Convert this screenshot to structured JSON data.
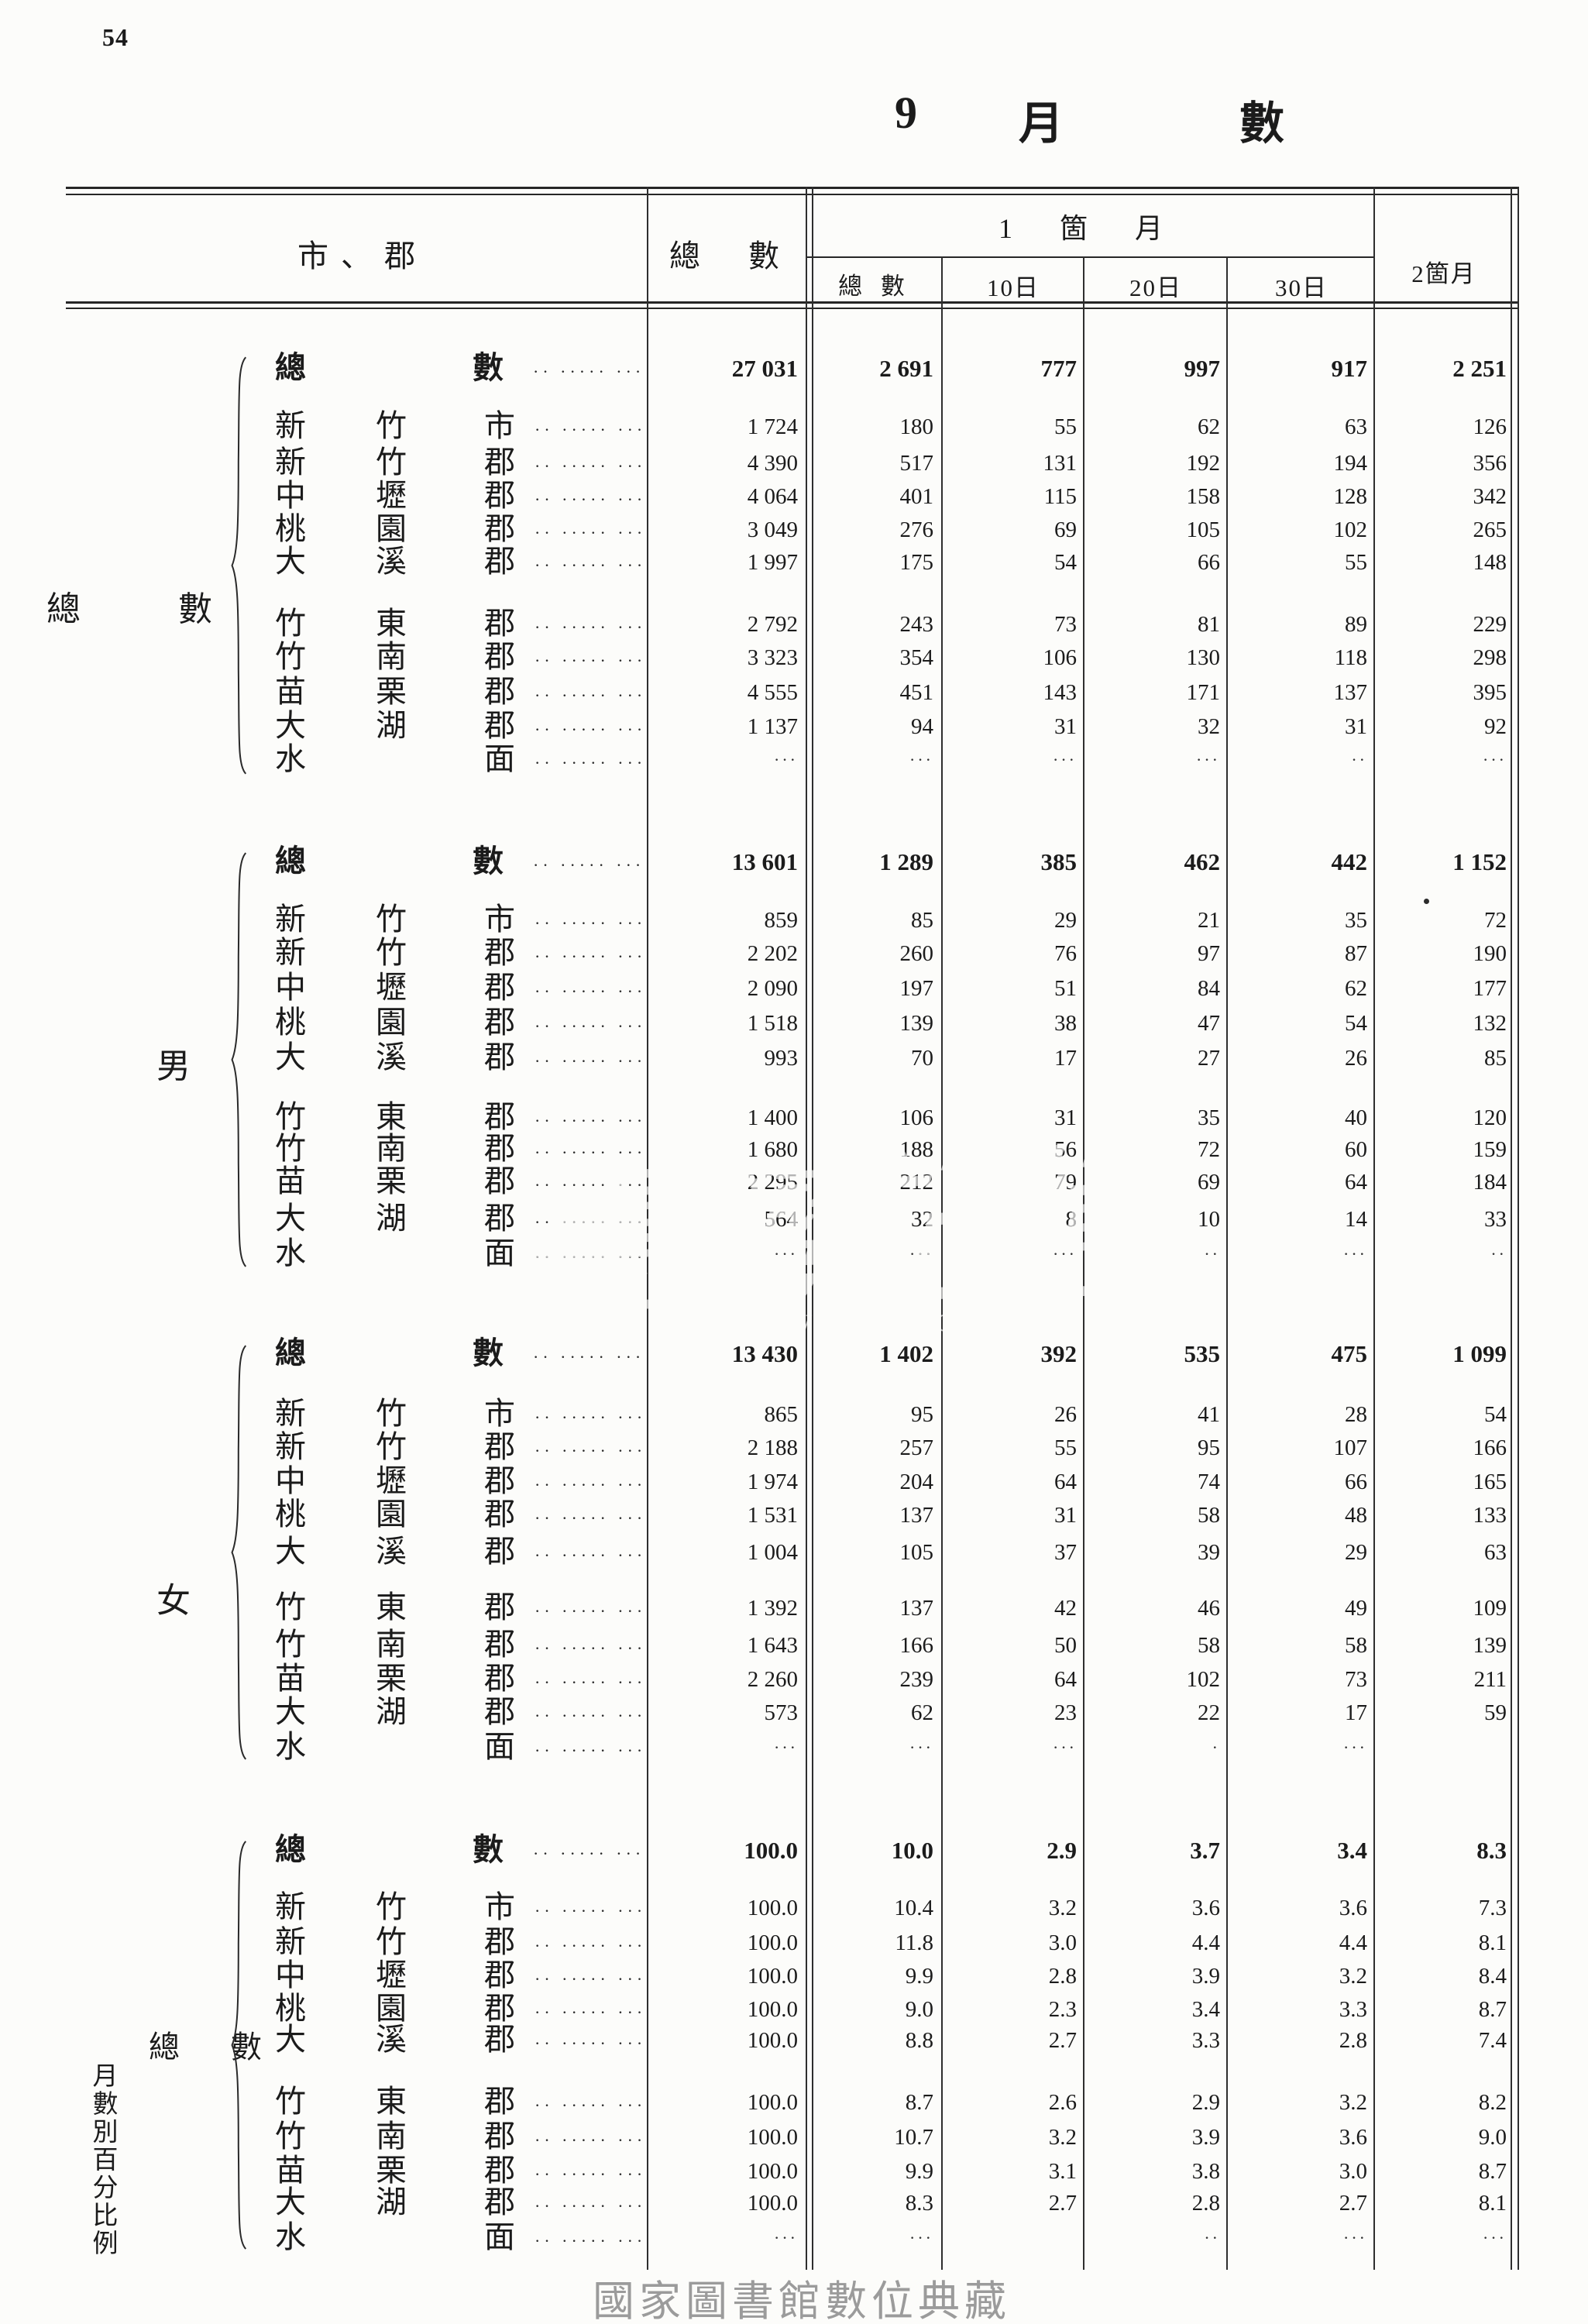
{
  "page": {
    "number": "54"
  },
  "title": {
    "parts": [
      "9",
      "月",
      "數"
    ]
  },
  "watermark": {
    "script": "臺灣記憶",
    "latin": "Taiwan Memory"
  },
  "footer": {
    "caption": "國家圖書館數位典藏"
  },
  "table": {
    "leader": "·· ····· ·····",
    "header": {
      "col_region": "市、郡",
      "col_total": "總 數",
      "col_month1": "1 箇 月",
      "sub_total": "總 數",
      "sub_d10": "10日",
      "sub_d20": "20日",
      "sub_d30": "30日",
      "col_month2": "2箇月"
    },
    "sections": [
      {
        "id": "total",
        "side": {
          "chars": [
            "總",
            "數"
          ]
        },
        "total": {
          "labels": [
            "總",
            "數"
          ],
          "values": [
            "27 031",
            "2 691",
            "777",
            "997",
            "917",
            "2 251"
          ]
        },
        "rows": [
          {
            "name": [
              "新",
              "竹",
              "市"
            ],
            "values": [
              "1 724",
              "180",
              "55",
              "62",
              "63",
              "126"
            ]
          },
          {
            "name": [
              "新",
              "竹",
              "郡"
            ],
            "values": [
              "4 390",
              "517",
              "131",
              "192",
              "194",
              "356"
            ]
          },
          {
            "name": [
              "中",
              "壢",
              "郡"
            ],
            "values": [
              "4 064",
              "401",
              "115",
              "158",
              "128",
              "342"
            ]
          },
          {
            "name": [
              "桃",
              "園",
              "郡"
            ],
            "values": [
              "3 049",
              "276",
              "69",
              "105",
              "102",
              "265"
            ]
          },
          {
            "name": [
              "大",
              "溪",
              "郡"
            ],
            "values": [
              "1 997",
              "175",
              "54",
              "66",
              "55",
              "148"
            ]
          },
          {
            "name": [
              "竹",
              "東",
              "郡"
            ],
            "values": [
              "2 792",
              "243",
              "73",
              "81",
              "89",
              "229"
            ]
          },
          {
            "name": [
              "竹",
              "南",
              "郡"
            ],
            "values": [
              "3 323",
              "354",
              "106",
              "130",
              "118",
              "298"
            ]
          },
          {
            "name": [
              "苗",
              "栗",
              "郡"
            ],
            "values": [
              "4 555",
              "451",
              "143",
              "171",
              "137",
              "395"
            ]
          },
          {
            "name": [
              "大",
              "湖",
              "郡"
            ],
            "values": [
              "1 137",
              "94",
              "31",
              "32",
              "31",
              "92"
            ]
          },
          {
            "name": [
              "水",
              "",
              "面"
            ],
            "values": [
              "···",
              "···",
              "···",
              "···",
              "··",
              "···"
            ]
          }
        ]
      },
      {
        "id": "male",
        "side": {
          "chars": [
            "男"
          ]
        },
        "total": {
          "labels": [
            "總",
            "數"
          ],
          "values": [
            "13 601",
            "1 289",
            "385",
            "462",
            "442",
            "1 152"
          ]
        },
        "rows": [
          {
            "name": [
              "新",
              "竹",
              "市"
            ],
            "values": [
              "859",
              "85",
              "29",
              "21",
              "35",
              "72"
            ]
          },
          {
            "name": [
              "新",
              "竹",
              "郡"
            ],
            "values": [
              "2 202",
              "260",
              "76",
              "97",
              "87",
              "190"
            ]
          },
          {
            "name": [
              "中",
              "壢",
              "郡"
            ],
            "values": [
              "2 090",
              "197",
              "51",
              "84",
              "62",
              "177"
            ]
          },
          {
            "name": [
              "桃",
              "園",
              "郡"
            ],
            "values": [
              "1 518",
              "139",
              "38",
              "47",
              "54",
              "132"
            ]
          },
          {
            "name": [
              "大",
              "溪",
              "郡"
            ],
            "values": [
              "993",
              "70",
              "17",
              "27",
              "26",
              "85"
            ]
          },
          {
            "name": [
              "竹",
              "東",
              "郡"
            ],
            "values": [
              "1 400",
              "106",
              "31",
              "35",
              "40",
              "120"
            ]
          },
          {
            "name": [
              "竹",
              "南",
              "郡"
            ],
            "values": [
              "1 680",
              "188",
              "56",
              "72",
              "60",
              "159"
            ]
          },
          {
            "name": [
              "苗",
              "栗",
              "郡"
            ],
            "values": [
              "2 295",
              "212",
              "79",
              "69",
              "64",
              "184"
            ]
          },
          {
            "name": [
              "大",
              "湖",
              "郡"
            ],
            "values": [
              "564",
              "32",
              "8",
              "10",
              "14",
              "33"
            ]
          },
          {
            "name": [
              "水",
              "",
              "面"
            ],
            "values": [
              "···",
              "···",
              "···",
              "··",
              "···",
              "··"
            ]
          }
        ]
      },
      {
        "id": "female",
        "side": {
          "chars": [
            "女"
          ]
        },
        "total": {
          "labels": [
            "總",
            "數"
          ],
          "values": [
            "13 430",
            "1 402",
            "392",
            "535",
            "475",
            "1 099"
          ]
        },
        "rows": [
          {
            "name": [
              "新",
              "竹",
              "市"
            ],
            "values": [
              "865",
              "95",
              "26",
              "41",
              "28",
              "54"
            ]
          },
          {
            "name": [
              "新",
              "竹",
              "郡"
            ],
            "values": [
              "2 188",
              "257",
              "55",
              "95",
              "107",
              "166"
            ]
          },
          {
            "name": [
              "中",
              "壢",
              "郡"
            ],
            "values": [
              "1 974",
              "204",
              "64",
              "74",
              "66",
              "165"
            ]
          },
          {
            "name": [
              "桃",
              "園",
              "郡"
            ],
            "values": [
              "1 531",
              "137",
              "31",
              "58",
              "48",
              "133"
            ]
          },
          {
            "name": [
              "大",
              "溪",
              "郡"
            ],
            "values": [
              "1 004",
              "105",
              "37",
              "39",
              "29",
              "63"
            ]
          },
          {
            "name": [
              "竹",
              "東",
              "郡"
            ],
            "values": [
              "1 392",
              "137",
              "42",
              "46",
              "49",
              "109"
            ]
          },
          {
            "name": [
              "竹",
              "南",
              "郡"
            ],
            "values": [
              "1 643",
              "166",
              "50",
              "58",
              "58",
              "139"
            ]
          },
          {
            "name": [
              "苗",
              "栗",
              "郡"
            ],
            "values": [
              "2 260",
              "239",
              "64",
              "102",
              "73",
              "211"
            ]
          },
          {
            "name": [
              "大",
              "湖",
              "郡"
            ],
            "values": [
              "573",
              "62",
              "23",
              "22",
              "17",
              "59"
            ]
          },
          {
            "name": [
              "水",
              "",
              "面"
            ],
            "values": [
              "···",
              "···",
              "···",
              "·",
              "···",
              ""
            ]
          }
        ]
      },
      {
        "id": "percent",
        "side": {
          "chars": [
            "總",
            "數"
          ],
          "vertical": "月數別百分比例"
        },
        "total": {
          "labels": [
            "總",
            "數"
          ],
          "values": [
            "100.0",
            "10.0",
            "2.9",
            "3.7",
            "3.4",
            "8.3"
          ]
        },
        "rows": [
          {
            "name": [
              "新",
              "竹",
              "市"
            ],
            "values": [
              "100.0",
              "10.4",
              "3.2",
              "3.6",
              "3.6",
              "7.3"
            ]
          },
          {
            "name": [
              "新",
              "竹",
              "郡"
            ],
            "values": [
              "100.0",
              "11.8",
              "3.0",
              "4.4",
              "4.4",
              "8.1"
            ]
          },
          {
            "name": [
              "中",
              "壢",
              "郡"
            ],
            "values": [
              "100.0",
              "9.9",
              "2.8",
              "3.9",
              "3.2",
              "8.4"
            ]
          },
          {
            "name": [
              "桃",
              "園",
              "郡"
            ],
            "values": [
              "100.0",
              "9.0",
              "2.3",
              "3.4",
              "3.3",
              "8.7"
            ]
          },
          {
            "name": [
              "大",
              "溪",
              "郡"
            ],
            "values": [
              "100.0",
              "8.8",
              "2.7",
              "3.3",
              "2.8",
              "7.4"
            ]
          },
          {
            "name": [
              "竹",
              "東",
              "郡"
            ],
            "values": [
              "100.0",
              "8.7",
              "2.6",
              "2.9",
              "3.2",
              "8.2"
            ]
          },
          {
            "name": [
              "竹",
              "南",
              "郡"
            ],
            "values": [
              "100.0",
              "10.7",
              "3.2",
              "3.9",
              "3.6",
              "9.0"
            ]
          },
          {
            "name": [
              "苗",
              "栗",
              "郡"
            ],
            "values": [
              "100.0",
              "9.9",
              "3.1",
              "3.8",
              "3.0",
              "8.7"
            ]
          },
          {
            "name": [
              "大",
              "湖",
              "郡"
            ],
            "values": [
              "100.0",
              "8.3",
              "2.7",
              "2.8",
              "2.7",
              "8.1"
            ]
          },
          {
            "name": [
              "水",
              "",
              "面"
            ],
            "values": [
              "···",
              "···",
              "",
              "··",
              "···",
              "···"
            ]
          }
        ]
      }
    ]
  }
}
